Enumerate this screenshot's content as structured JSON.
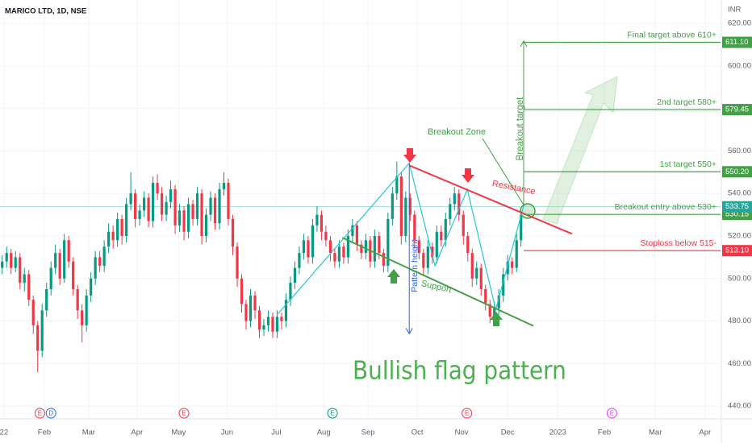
{
  "chart_data": {
    "type": "candlestick",
    "title": "MARICO LTD, 1D, NSE",
    "currency": "INR",
    "up_color": "#089981",
    "down_color": "#f23645",
    "xlim": [
      -0.5,
      162
    ],
    "ylim": [
      434,
      631
    ],
    "yticks": [
      {
        "value": 440,
        "label": "440.00"
      },
      {
        "value": 460,
        "label": "460.00"
      },
      {
        "value": 480,
        "label": "480.00"
      },
      {
        "value": 500,
        "label": "500.00"
      },
      {
        "value": 520,
        "label": "520.00"
      },
      {
        "value": 540,
        "label": "540.00"
      },
      {
        "value": 560,
        "label": "560.00"
      },
      {
        "value": 580,
        "label": "580.00"
      },
      {
        "value": 600,
        "label": "600.00"
      },
      {
        "value": 620,
        "label": "620.00"
      }
    ],
    "xticks": [
      {
        "value": 0.4,
        "label": "22"
      },
      {
        "value": 9.5,
        "label": "Feb"
      },
      {
        "value": 19.5,
        "label": "Mar"
      },
      {
        "value": 30.4,
        "label": "Apr"
      },
      {
        "value": 39.8,
        "label": "May"
      },
      {
        "value": 50.7,
        "label": "Jun"
      },
      {
        "value": 61.8,
        "label": "Jul"
      },
      {
        "value": 72.5,
        "label": "Aug"
      },
      {
        "value": 82.5,
        "label": "Sep"
      },
      {
        "value": 93.6,
        "label": "Oct"
      },
      {
        "value": 103.6,
        "label": "Nov"
      },
      {
        "value": 114,
        "label": "Dec"
      },
      {
        "value": 125.3,
        "label": "2023"
      },
      {
        "value": 135.8,
        "label": "Feb"
      },
      {
        "value": 147.3,
        "label": "Mar"
      },
      {
        "value": 158.5,
        "label": "Apr"
      }
    ],
    "ohlc": [
      [
        505,
        511,
        502,
        508
      ],
      [
        508,
        515,
        505,
        512
      ],
      [
        512,
        514,
        502,
        505
      ],
      [
        505,
        513,
        503,
        510
      ],
      [
        510,
        512,
        495,
        498
      ],
      [
        498,
        505,
        494,
        502
      ],
      [
        502,
        504,
        487,
        490
      ],
      [
        490,
        492,
        474,
        478
      ],
      [
        478,
        480,
        456,
        466
      ],
      [
        466,
        488,
        463,
        485
      ],
      [
        485,
        498,
        482,
        495
      ],
      [
        495,
        508,
        492,
        505
      ],
      [
        505,
        516,
        502,
        512
      ],
      [
        512,
        514,
        497,
        500
      ],
      [
        500,
        521,
        498,
        518
      ],
      [
        518,
        520,
        505,
        508
      ],
      [
        508,
        510,
        492,
        495
      ],
      [
        495,
        497,
        481,
        485
      ],
      [
        485,
        488,
        470,
        478
      ],
      [
        478,
        495,
        475,
        492
      ],
      [
        492,
        503,
        489,
        500
      ],
      [
        500,
        513,
        497,
        510
      ],
      [
        510,
        513,
        503,
        506
      ],
      [
        506,
        518,
        503,
        515
      ],
      [
        515,
        526,
        512,
        522
      ],
      [
        522,
        525,
        514,
        518
      ],
      [
        518,
        531,
        515,
        528
      ],
      [
        528,
        530,
        516,
        520
      ],
      [
        520,
        538,
        517,
        535
      ],
      [
        535,
        550,
        532,
        540
      ],
      [
        540,
        542,
        524,
        528
      ],
      [
        528,
        535,
        525,
        532
      ],
      [
        532,
        541,
        529,
        538
      ],
      [
        538,
        540,
        524,
        527
      ],
      [
        527,
        548,
        524,
        545
      ],
      [
        545,
        549,
        537,
        540
      ],
      [
        540,
        543,
        527,
        530
      ],
      [
        530,
        539,
        527,
        536
      ],
      [
        536,
        546,
        533,
        542
      ],
      [
        542,
        544,
        521,
        525
      ],
      [
        525,
        535,
        522,
        532
      ],
      [
        532,
        534,
        518,
        522
      ],
      [
        522,
        538,
        519,
        535
      ],
      [
        535,
        537,
        525,
        528
      ],
      [
        528,
        543,
        525,
        540
      ],
      [
        540,
        542,
        516,
        520
      ],
      [
        520,
        533,
        517,
        530
      ],
      [
        530,
        541,
        527,
        538
      ],
      [
        538,
        540,
        523,
        526
      ],
      [
        526,
        545,
        523,
        542
      ],
      [
        542,
        550,
        539,
        545
      ],
      [
        545,
        547,
        525,
        528
      ],
      [
        528,
        530,
        511,
        515
      ],
      [
        515,
        517,
        496,
        500
      ],
      [
        500,
        502,
        484,
        488
      ],
      [
        488,
        490,
        476,
        480
      ],
      [
        480,
        495,
        477,
        492
      ],
      [
        492,
        494,
        481,
        485
      ],
      [
        485,
        487,
        472,
        476
      ],
      [
        476,
        481,
        473,
        478
      ],
      [
        478,
        485,
        475,
        482
      ],
      [
        482,
        484,
        472,
        475
      ],
      [
        475,
        485,
        472,
        482
      ],
      [
        482,
        484,
        476,
        480
      ],
      [
        480,
        493,
        477,
        490
      ],
      [
        490,
        501,
        487,
        498
      ],
      [
        498,
        508,
        495,
        505
      ],
      [
        505,
        515,
        502,
        512
      ],
      [
        512,
        521,
        509,
        518
      ],
      [
        518,
        520,
        507,
        510
      ],
      [
        510,
        528,
        507,
        525
      ],
      [
        525,
        534,
        522,
        530
      ],
      [
        530,
        532,
        518,
        522
      ],
      [
        522,
        525,
        515,
        518
      ],
      [
        518,
        520,
        508,
        512
      ],
      [
        512,
        514,
        505,
        508
      ],
      [
        508,
        518,
        505,
        515
      ],
      [
        515,
        517,
        507,
        510
      ],
      [
        510,
        523,
        507,
        520
      ],
      [
        520,
        528,
        517,
        525
      ],
      [
        525,
        527,
        513,
        516
      ],
      [
        516,
        518,
        509,
        512
      ],
      [
        512,
        521,
        509,
        518
      ],
      [
        518,
        520,
        505,
        508
      ],
      [
        508,
        523,
        505,
        520
      ],
      [
        520,
        522,
        509,
        512
      ],
      [
        512,
        514,
        503,
        506
      ],
      [
        506,
        531,
        503,
        528
      ],
      [
        528,
        543,
        525,
        540
      ],
      [
        540,
        555,
        537,
        548
      ],
      [
        548,
        550,
        516,
        520
      ],
      [
        520,
        541,
        517,
        538
      ],
      [
        538,
        540,
        527,
        530
      ],
      [
        530,
        532,
        514,
        518
      ],
      [
        518,
        520,
        509,
        512
      ],
      [
        512,
        514,
        502,
        505
      ],
      [
        505,
        518,
        502,
        515
      ],
      [
        515,
        517,
        507,
        510
      ],
      [
        510,
        525,
        507,
        522
      ],
      [
        522,
        525,
        515,
        518
      ],
      [
        518,
        531,
        515,
        528
      ],
      [
        528,
        538,
        525,
        535
      ],
      [
        535,
        543,
        532,
        540
      ],
      [
        540,
        542,
        527,
        530
      ],
      [
        530,
        532,
        516,
        520
      ],
      [
        520,
        522,
        508,
        512
      ],
      [
        512,
        514,
        496,
        500
      ],
      [
        500,
        508,
        497,
        505
      ],
      [
        505,
        507,
        492,
        495
      ],
      [
        495,
        497,
        485,
        488
      ],
      [
        488,
        490,
        479,
        482
      ],
      [
        482,
        489,
        479,
        486
      ],
      [
        486,
        495,
        483,
        492
      ],
      [
        492,
        505,
        489,
        502
      ],
      [
        502,
        511,
        499,
        508
      ],
      [
        508,
        510,
        502,
        505
      ],
      [
        505,
        521,
        503,
        518
      ],
      [
        518,
        532,
        515,
        530
      ]
    ],
    "last_price": {
      "value": 533.75,
      "label": "533.75",
      "color": "#26a69a"
    },
    "levels": [
      {
        "text": "Final target above 610+",
        "price": {
          "value": 611.1,
          "label": "611.10"
        },
        "color": "#43a047"
      },
      {
        "text": "2nd target 580+",
        "price": {
          "value": 579.45,
          "label": "579.45"
        },
        "color": "#43a047"
      },
      {
        "text": "1st target 550+",
        "price": {
          "value": 550.2,
          "label": "550.20"
        },
        "color": "#43a047"
      },
      {
        "text": "Breakout entry above 530+",
        "price": {
          "value": 530.15,
          "label": "530.15"
        },
        "color": "#43a047"
      },
      {
        "text": "Stoploss below 515-",
        "price": {
          "value": 513.1,
          "label": "513.10"
        },
        "color": "#f23645"
      }
    ],
    "level_start": 117.6,
    "resistance": {
      "text": "Resistance",
      "x": [
        91.8,
        128.5
      ],
      "y": [
        553.2,
        521
      ],
      "color": "#f23645"
    },
    "support": {
      "text": "Support",
      "x": [
        76.7,
        119.8
      ],
      "y": [
        519.2,
        477.7
      ],
      "color": "#43a047"
    },
    "pattern": {
      "x": [
        62.2,
        91.8,
        97.6,
        104.9,
        111.3,
        117.6
      ],
      "y": [
        483.4,
        554.3,
        506,
        541.9,
        485.3,
        534.3
      ],
      "color": "#26c6da"
    },
    "pattern_height": {
      "text": "Pattern height",
      "x": 91.8,
      "y": [
        554.3,
        474
      ],
      "color": "#2962ff"
    },
    "breakout_target": {
      "text": "Breakout target",
      "x": 117.6,
      "y": [
        534.3,
        611.7
      ],
      "color": "#43a047"
    },
    "breakout_zone": "Breakout Zone",
    "headline": "Bullish flag pattern",
    "events": [
      {
        "label": "E",
        "x": 8.5,
        "color": "#f23645"
      },
      {
        "label": "D",
        "x": 11,
        "color": "#2962ff"
      },
      {
        "label": "E",
        "x": 41,
        "color": "#f23645"
      },
      {
        "label": "E",
        "x": 74.5,
        "color": "#089981"
      },
      {
        "label": "E",
        "x": 104.8,
        "color": "#f23645"
      },
      {
        "label": "E",
        "x": 137.5,
        "color": "#e040fb"
      }
    ]
  }
}
